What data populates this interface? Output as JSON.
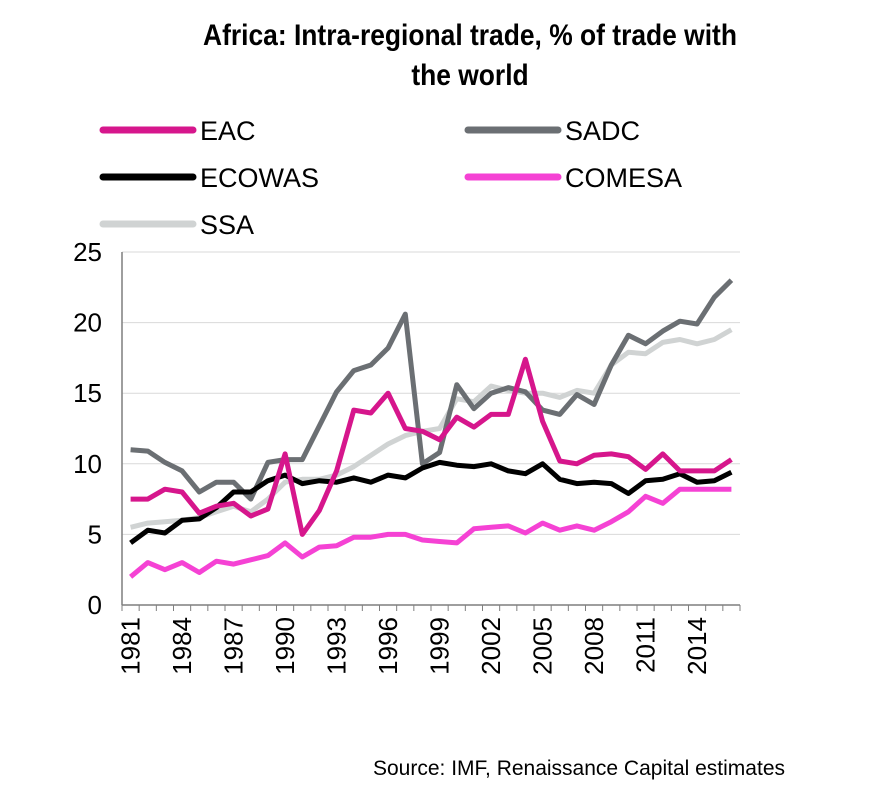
{
  "title_line1": "Africa: Intra-regional trade, % of trade with",
  "title_line2": "the world",
  "source": "Source: IMF, Renaissance Capital estimates",
  "chart_data": {
    "type": "line",
    "title": "Africa: Intra-regional trade, % of trade with the world",
    "xlabel": "",
    "ylabel": "",
    "ylim": [
      0,
      25
    ],
    "yticks": [
      "0",
      "5",
      "10",
      "15",
      "20",
      "25"
    ],
    "xtick_labels": [
      "1981",
      "1984",
      "1987",
      "1990",
      "1993",
      "1996",
      "1999",
      "2002",
      "2005",
      "2008",
      "2011",
      "2014"
    ],
    "x": [
      1981,
      1982,
      1983,
      1984,
      1985,
      1986,
      1987,
      1988,
      1989,
      1990,
      1991,
      1992,
      1993,
      1994,
      1995,
      1996,
      1997,
      1998,
      1999,
      2000,
      2001,
      2002,
      2003,
      2004,
      2005,
      2006,
      2007,
      2008,
      2009,
      2010,
      2011,
      2012,
      2013,
      2014,
      2015,
      2016
    ],
    "grid": "horizontal",
    "legend": "top, two columns",
    "series": [
      {
        "name": "EAC",
        "color": "#d6168c",
        "values": [
          7.5,
          7.5,
          8.2,
          8.0,
          6.5,
          7.0,
          7.2,
          6.3,
          6.8,
          10.7,
          5.0,
          6.7,
          9.5,
          13.8,
          13.6,
          15.0,
          12.5,
          12.3,
          11.7,
          13.3,
          12.6,
          13.5,
          13.5,
          17.4,
          13.0,
          10.2,
          10.0,
          10.6,
          10.7,
          10.5,
          9.6,
          10.7,
          9.5,
          9.5,
          9.5,
          10.3
        ]
      },
      {
        "name": "SADC",
        "color": "#6b6f73",
        "values": [
          11.0,
          10.9,
          10.1,
          9.5,
          8.0,
          8.7,
          8.7,
          7.5,
          10.1,
          10.3,
          10.3,
          12.7,
          15.1,
          16.6,
          17.0,
          18.2,
          20.6,
          10.0,
          10.8,
          15.6,
          13.9,
          15.0,
          15.4,
          15.1,
          13.8,
          13.5,
          14.9,
          14.2,
          17.0,
          19.1,
          18.5,
          19.4,
          20.1,
          19.9,
          21.8,
          23.0
        ]
      },
      {
        "name": "ECOWAS",
        "color": "#000000",
        "values": [
          4.4,
          5.3,
          5.1,
          6.0,
          6.1,
          6.9,
          8.0,
          8.0,
          8.8,
          9.2,
          8.6,
          8.8,
          8.7,
          9.0,
          8.7,
          9.2,
          9.0,
          9.7,
          10.1,
          9.9,
          9.8,
          10.0,
          9.5,
          9.3,
          10.0,
          8.9,
          8.6,
          8.7,
          8.6,
          7.9,
          8.8,
          8.9,
          9.3,
          8.7,
          8.8,
          9.4
        ]
      },
      {
        "name": "COMESA",
        "color": "#f542d4",
        "values": [
          2.0,
          3.0,
          2.5,
          3.0,
          2.3,
          3.1,
          2.9,
          3.2,
          3.5,
          4.4,
          3.4,
          4.1,
          4.2,
          4.8,
          4.8,
          5.0,
          5.0,
          4.6,
          4.5,
          4.4,
          5.4,
          5.5,
          5.6,
          5.1,
          5.8,
          5.3,
          5.6,
          5.3,
          5.9,
          6.6,
          7.7,
          7.2,
          8.2,
          8.2,
          8.2,
          8.2
        ]
      },
      {
        "name": "SSA",
        "color": "#d0d3d3",
        "values": [
          5.5,
          5.8,
          5.9,
          6.0,
          6.2,
          6.6,
          7.0,
          6.6,
          7.5,
          8.7,
          8.9,
          8.9,
          9.2,
          9.8,
          10.6,
          11.4,
          12.0,
          12.3,
          12.5,
          14.6,
          14.4,
          15.5,
          15.2,
          15.0,
          15.0,
          14.7,
          15.2,
          15.0,
          17.0,
          17.9,
          17.8,
          18.6,
          18.8,
          18.5,
          18.8,
          19.5
        ]
      }
    ]
  }
}
